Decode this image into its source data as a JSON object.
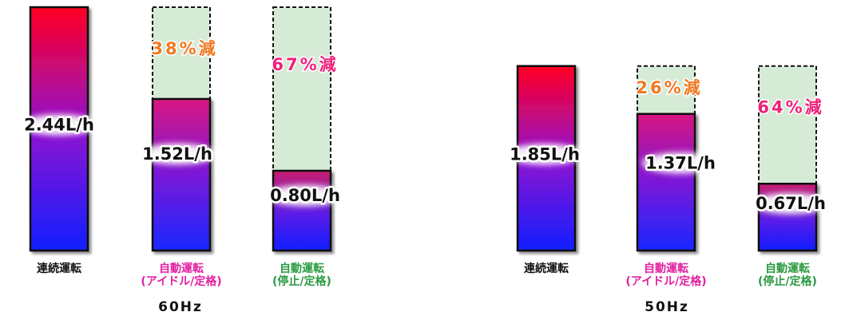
{
  "chart_data": [
    {
      "type": "bar",
      "group_label": "60Hz",
      "unit": "L/h",
      "ylim": [
        0,
        2.44
      ],
      "baseline": 2.44,
      "categories": [
        {
          "label_lines": [
            "連続運転"
          ],
          "color": "#111111"
        },
        {
          "label_lines": [
            "自動運転",
            "(アイドル/定格)"
          ],
          "color": "#e020a0"
        },
        {
          "label_lines": [
            "自動運転",
            "(停止/定格)"
          ],
          "color": "#2a9a40"
        }
      ],
      "values": [
        2.44,
        1.52,
        0.8
      ],
      "value_labels": [
        "2.44L/h",
        "1.52L/h",
        "0.80L/h"
      ],
      "reductions": [
        null,
        "38%減",
        "67%減"
      ],
      "reduction_colors": [
        null,
        "#f07820",
        "#f0207a"
      ]
    },
    {
      "type": "bar",
      "group_label": "50Hz",
      "unit": "L/h",
      "ylim": [
        0,
        2.44
      ],
      "baseline": 1.85,
      "categories": [
        {
          "label_lines": [
            "連続運転"
          ],
          "color": "#111111"
        },
        {
          "label_lines": [
            "自動運転",
            "(アイドル/定格)"
          ],
          "color": "#e020a0"
        },
        {
          "label_lines": [
            "自動運転",
            "(停止/定格)"
          ],
          "color": "#2a9a40"
        }
      ],
      "values": [
        1.85,
        1.37,
        0.67
      ],
      "value_labels": [
        "1.85L/h",
        "1.37L/h",
        "0.67L/h"
      ],
      "reductions": [
        null,
        "26%減",
        "64%減"
      ],
      "reduction_colors": [
        null,
        "#f07820",
        "#f0207a"
      ]
    }
  ]
}
